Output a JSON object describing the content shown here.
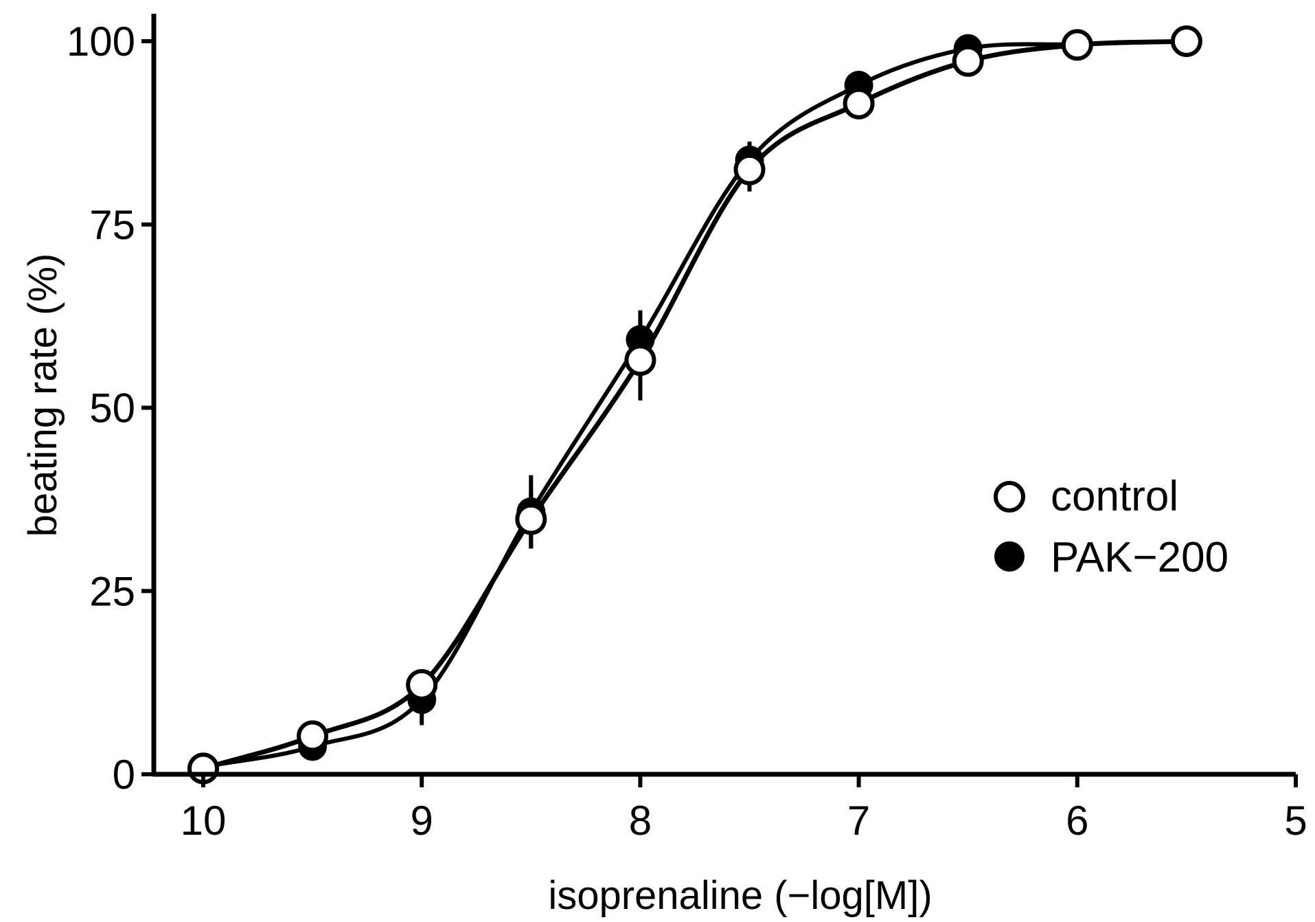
{
  "chart_data": {
    "type": "scatter",
    "title": "",
    "xlabel": "isoprenaline (−log[M])",
    "ylabel": "beating rate (%)",
    "x_reversed": true,
    "xlim": [
      10,
      5
    ],
    "ylim": [
      0,
      100
    ],
    "x_ticks": [
      "10",
      "9",
      "8",
      "7",
      "6",
      "5"
    ],
    "y_ticks": [
      "0",
      "25",
      "50",
      "75",
      "100"
    ],
    "grid": false,
    "legend": {
      "position": "center-right"
    },
    "series": [
      {
        "name": "control",
        "marker": "open-circle",
        "x": [
          10,
          9.5,
          9,
          8.5,
          8,
          7.5,
          7,
          6.5,
          6,
          5.5
        ],
        "y": [
          0.8,
          5.2,
          12.2,
          34.8,
          56.5,
          82.5,
          91.5,
          97.3,
          99.5,
          100
        ],
        "err": [
          0.3,
          0.8,
          1.5,
          4.0,
          5.5,
          3.0,
          1.0,
          0.5,
          0.3,
          0.2
        ]
      },
      {
        "name": "PAK−200",
        "marker": "filled-circle",
        "x": [
          10,
          9.5,
          9,
          8.5,
          8,
          7.5,
          7,
          6.5,
          6,
          5.5
        ],
        "y": [
          1.0,
          3.8,
          10.2,
          35.8,
          59.3,
          83.8,
          94.0,
          99.0,
          99.6,
          100
        ],
        "err": [
          0.3,
          0.6,
          3.5,
          5.0,
          4.0,
          2.5,
          1.0,
          0.5,
          0.3,
          0.2
        ]
      }
    ]
  }
}
